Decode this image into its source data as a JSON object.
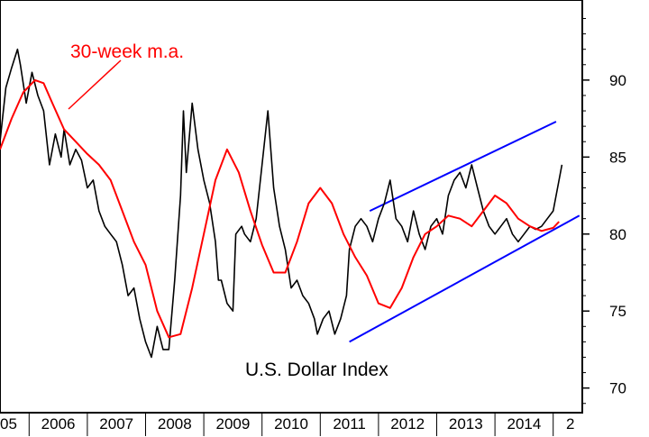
{
  "chart_data": {
    "type": "line",
    "title": "",
    "xlabel": "",
    "ylabel": "",
    "x_tick_labels": [
      "05",
      "2006",
      "2007",
      "2008",
      "2009",
      "2010",
      "2011",
      "2012",
      "2013",
      "2014",
      "2"
    ],
    "y_ticks": [
      70,
      75,
      80,
      85,
      90
    ],
    "xlim": [
      2005.0,
      2015.0
    ],
    "ylim": [
      68.4,
      95.2
    ],
    "grid": false,
    "annotations": [
      {
        "text": "30-week m.a.",
        "color": "#ff0000"
      },
      {
        "text": "U.S. Dollar Index",
        "color": "#000000"
      }
    ],
    "series": [
      {
        "color": "#000000",
        "x": [
          2005.0,
          2005.1,
          2005.2,
          2005.3,
          2005.35,
          2005.45,
          2005.55,
          2005.65,
          2005.75,
          2005.85,
          2005.95,
          2006.05,
          2006.1,
          2006.2,
          2006.3,
          2006.4,
          2006.5,
          2006.6,
          2006.7,
          2006.8,
          2006.9,
          2007.0,
          2007.1,
          2007.2,
          2007.3,
          2007.4,
          2007.5,
          2007.6,
          2007.7,
          2007.8,
          2007.9,
          2008.0,
          2008.1,
          2008.15,
          2008.2,
          2008.3,
          2008.4,
          2008.5,
          2008.6,
          2008.7,
          2008.75,
          2008.8,
          2008.9,
          2009.0,
          2009.05,
          2009.15,
          2009.2,
          2009.3,
          2009.4,
          2009.5,
          2009.6,
          2009.7,
          2009.8,
          2009.9,
          2010.0,
          2010.1,
          2010.2,
          2010.3,
          2010.4,
          2010.45,
          2010.55,
          2010.65,
          2010.75,
          2010.85,
          2010.95,
          2011.0,
          2011.1,
          2011.2,
          2011.3,
          2011.4,
          2011.5,
          2011.6,
          2011.7,
          2011.8,
          2011.9,
          2012.0,
          2012.1,
          2012.2,
          2012.3,
          2012.4,
          2012.5,
          2012.6,
          2012.7,
          2012.8,
          2012.9,
          2013.0,
          2013.1,
          2013.2,
          2013.3,
          2013.4,
          2013.5,
          2013.6,
          2013.7,
          2013.8,
          2013.9,
          2014.0,
          2014.1,
          2014.2,
          2014.3,
          2014.4,
          2014.5,
          2014.6,
          2014.65
        ],
        "y": [
          86.0,
          89.5,
          90.8,
          92.0,
          91.0,
          88.5,
          90.5,
          89.0,
          88.0,
          84.5,
          86.5,
          85.0,
          86.8,
          84.5,
          85.5,
          84.8,
          83.0,
          83.5,
          81.5,
          80.5,
          80.0,
          79.5,
          78.0,
          76.0,
          76.5,
          74.5,
          73.0,
          72.0,
          74.0,
          72.5,
          72.5,
          77.0,
          82.5,
          88.0,
          84.0,
          88.5,
          85.5,
          83.5,
          82.0,
          79.5,
          77.0,
          77.0,
          75.5,
          75.0,
          80.0,
          80.5,
          80.0,
          79.5,
          81.0,
          84.5,
          88.0,
          83.0,
          80.5,
          79.0,
          76.5,
          77.0,
          76.0,
          75.5,
          74.5,
          73.5,
          74.5,
          75.0,
          73.5,
          74.5,
          76.0,
          79.0,
          80.5,
          81.0,
          80.5,
          79.5,
          81.0,
          82.0,
          83.5,
          81.0,
          80.5,
          79.5,
          81.5,
          80.0,
          79.0,
          80.5,
          81.0,
          80.0,
          82.5,
          83.5,
          84.0,
          83.0,
          84.5,
          83.0,
          81.5,
          80.5,
          80.0,
          80.5,
          81.0,
          80.0,
          79.5,
          80.0,
          80.5,
          80.3,
          80.5,
          81.0,
          81.5,
          83.5,
          84.5
        ]
      },
      {
        "name": "30-week m.a.",
        "color": "#ff0000",
        "x": [
          2005.0,
          2005.2,
          2005.4,
          2005.6,
          2005.75,
          2005.9,
          2006.1,
          2006.3,
          2006.5,
          2006.7,
          2006.9,
          2007.1,
          2007.3,
          2007.5,
          2007.7,
          2007.9,
          2008.1,
          2008.3,
          2008.5,
          2008.7,
          2008.9,
          2009.1,
          2009.3,
          2009.5,
          2009.7,
          2009.9,
          2010.1,
          2010.3,
          2010.5,
          2010.7,
          2010.9,
          2011.1,
          2011.3,
          2011.5,
          2011.7,
          2011.9,
          2012.1,
          2012.3,
          2012.5,
          2012.7,
          2012.9,
          2013.1,
          2013.3,
          2013.5,
          2013.7,
          2013.9,
          2014.1,
          2014.3,
          2014.5,
          2014.6
        ],
        "y": [
          85.5,
          87.5,
          89.2,
          90.0,
          89.8,
          88.5,
          86.8,
          86.0,
          85.2,
          84.5,
          83.5,
          81.5,
          79.5,
          78.0,
          75.0,
          73.3,
          73.5,
          76.5,
          80.0,
          83.5,
          85.5,
          84.0,
          81.5,
          79.3,
          77.5,
          77.5,
          79.5,
          82.0,
          83.0,
          82.0,
          80.0,
          78.5,
          77.3,
          75.5,
          75.2,
          76.5,
          78.5,
          80.0,
          80.5,
          81.2,
          81.0,
          80.5,
          81.5,
          82.5,
          82.0,
          81.0,
          80.5,
          80.2,
          80.4,
          80.8
        ]
      }
    ],
    "trendlines": [
      {
        "color": "#0000ff",
        "x": [
          2011.0,
          2014.95
        ],
        "y": [
          73.0,
          81.2
        ]
      },
      {
        "color": "#0000ff",
        "x": [
          2011.35,
          2014.55
        ],
        "y": [
          81.5,
          87.3
        ]
      }
    ]
  }
}
